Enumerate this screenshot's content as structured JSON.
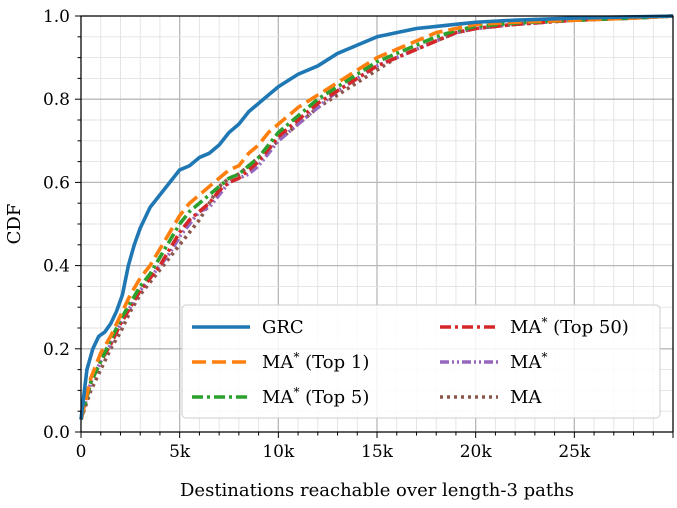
{
  "chart_data": {
    "type": "line",
    "title": "",
    "xlabel": "Destinations reachable over length-3 paths",
    "ylabel": "CDF",
    "xlim": [
      0,
      30000
    ],
    "ylim": [
      0,
      1.0
    ],
    "grid": true,
    "minor_grid": true,
    "legend_position": "lower-right",
    "xticks": [
      0,
      5000,
      10000,
      15000,
      20000,
      25000
    ],
    "xtick_labels": [
      "0",
      "5k",
      "10k",
      "15k",
      "20k",
      "25k"
    ],
    "yticks": [
      0,
      0.2,
      0.4,
      0.6,
      0.8,
      1.0
    ],
    "ytick_labels": [
      "0.0",
      "0.2",
      "0.4",
      "0.6",
      "0.8",
      "1.0"
    ],
    "series": [
      {
        "name": "GRC",
        "color": "#1f77b4",
        "dash": "solid",
        "x": [
          0,
          300,
          600,
          900,
          1200,
          1500,
          1800,
          2100,
          2400,
          2700,
          3000,
          3500,
          4000,
          4500,
          5000,
          5500,
          6000,
          6500,
          7000,
          7500,
          8000,
          8500,
          9000,
          9500,
          10000,
          11000,
          12000,
          13000,
          14000,
          15000,
          16000,
          17000,
          18000,
          19000,
          20000,
          22000,
          25000,
          28000,
          30000
        ],
        "y": [
          0.03,
          0.15,
          0.2,
          0.23,
          0.24,
          0.26,
          0.29,
          0.33,
          0.4,
          0.45,
          0.49,
          0.54,
          0.57,
          0.6,
          0.63,
          0.64,
          0.66,
          0.67,
          0.69,
          0.72,
          0.74,
          0.77,
          0.79,
          0.81,
          0.83,
          0.86,
          0.88,
          0.91,
          0.93,
          0.95,
          0.96,
          0.97,
          0.975,
          0.98,
          0.985,
          0.99,
          0.995,
          0.998,
          1.0
        ]
      },
      {
        "name": "MA* (Top 1)",
        "color": "#ff7f0e",
        "dash": "dashed",
        "x": [
          0,
          500,
          1000,
          1500,
          2000,
          2500,
          3000,
          3500,
          4000,
          4500,
          5000,
          5500,
          6000,
          6500,
          7000,
          7500,
          8000,
          8500,
          9000,
          9500,
          10000,
          11000,
          12000,
          13000,
          14000,
          15000,
          16000,
          17000,
          18000,
          19000,
          20000,
          22000,
          25000,
          28000,
          30000
        ],
        "y": [
          0.03,
          0.13,
          0.19,
          0.23,
          0.28,
          0.33,
          0.37,
          0.4,
          0.44,
          0.48,
          0.52,
          0.55,
          0.57,
          0.59,
          0.61,
          0.63,
          0.64,
          0.67,
          0.69,
          0.72,
          0.74,
          0.78,
          0.81,
          0.84,
          0.87,
          0.9,
          0.92,
          0.94,
          0.96,
          0.97,
          0.98,
          0.985,
          0.99,
          0.995,
          1.0
        ]
      },
      {
        "name": "MA* (Top 5)",
        "color": "#2ca02c",
        "dash": "dashdot",
        "x": [
          0,
          500,
          1000,
          1500,
          2000,
          2500,
          3000,
          3500,
          4000,
          4500,
          5000,
          5500,
          6000,
          6500,
          7000,
          7500,
          8000,
          8500,
          9000,
          9500,
          10000,
          11000,
          12000,
          13000,
          14000,
          15000,
          16000,
          17000,
          18000,
          19000,
          20000,
          22000,
          25000,
          28000,
          30000
        ],
        "y": [
          0.03,
          0.12,
          0.17,
          0.22,
          0.27,
          0.31,
          0.35,
          0.38,
          0.42,
          0.46,
          0.5,
          0.53,
          0.55,
          0.57,
          0.59,
          0.61,
          0.62,
          0.64,
          0.66,
          0.69,
          0.72,
          0.76,
          0.8,
          0.83,
          0.86,
          0.89,
          0.91,
          0.93,
          0.95,
          0.965,
          0.975,
          0.983,
          0.99,
          0.995,
          1.0
        ]
      },
      {
        "name": "MA* (Top 50)",
        "color": "#d62728",
        "dash": "dashdot",
        "x": [
          0,
          500,
          1000,
          1500,
          2000,
          2500,
          3000,
          3500,
          4000,
          4500,
          5000,
          5500,
          6000,
          6500,
          7000,
          7500,
          8000,
          8500,
          9000,
          9500,
          10000,
          11000,
          12000,
          13000,
          14000,
          15000,
          16000,
          17000,
          18000,
          19000,
          20000,
          22000,
          25000,
          28000,
          30000
        ],
        "y": [
          0.03,
          0.12,
          0.17,
          0.21,
          0.26,
          0.3,
          0.34,
          0.37,
          0.4,
          0.44,
          0.48,
          0.51,
          0.53,
          0.55,
          0.58,
          0.6,
          0.61,
          0.63,
          0.65,
          0.68,
          0.71,
          0.75,
          0.79,
          0.82,
          0.85,
          0.88,
          0.9,
          0.92,
          0.94,
          0.96,
          0.97,
          0.98,
          0.99,
          0.995,
          1.0
        ]
      },
      {
        "name": "MA*",
        "color": "#9467bd",
        "dash": "dashdotdot",
        "x": [
          0,
          500,
          1000,
          1500,
          2000,
          2500,
          3000,
          3500,
          4000,
          4500,
          5000,
          5500,
          6000,
          6500,
          7000,
          7500,
          8000,
          8500,
          9000,
          9500,
          10000,
          11000,
          12000,
          13000,
          14000,
          15000,
          16000,
          17000,
          18000,
          19000,
          20000,
          22000,
          25000,
          28000,
          30000
        ],
        "y": [
          0.03,
          0.12,
          0.17,
          0.21,
          0.26,
          0.3,
          0.34,
          0.37,
          0.4,
          0.43,
          0.47,
          0.5,
          0.53,
          0.54,
          0.57,
          0.6,
          0.61,
          0.62,
          0.64,
          0.67,
          0.7,
          0.74,
          0.78,
          0.82,
          0.85,
          0.88,
          0.9,
          0.92,
          0.94,
          0.96,
          0.97,
          0.98,
          0.99,
          0.995,
          1.0
        ]
      },
      {
        "name": "MA",
        "color": "#8c564b",
        "dash": "dotted",
        "x": [
          0,
          500,
          1000,
          1500,
          2000,
          2500,
          3000,
          3500,
          4000,
          4500,
          5000,
          5500,
          6000,
          6500,
          7000,
          7500,
          8000,
          8500,
          9000,
          9500,
          10000,
          11000,
          12000,
          13000,
          14000,
          15000,
          16000,
          17000,
          18000,
          19000,
          20000,
          22000,
          25000,
          28000,
          30000
        ],
        "y": [
          0.03,
          0.1,
          0.15,
          0.2,
          0.24,
          0.29,
          0.33,
          0.36,
          0.39,
          0.42,
          0.45,
          0.48,
          0.51,
          0.55,
          0.59,
          0.61,
          0.62,
          0.64,
          0.66,
          0.68,
          0.7,
          0.74,
          0.78,
          0.81,
          0.84,
          0.87,
          0.9,
          0.92,
          0.94,
          0.96,
          0.97,
          0.98,
          0.99,
          0.995,
          1.0
        ]
      }
    ],
    "legend": {
      "columns": [
        [
          "GRC",
          "MA* (Top 1)",
          "MA* (Top 5)"
        ],
        [
          "MA* (Top 50)",
          "MA*",
          "MA"
        ]
      ]
    }
  }
}
